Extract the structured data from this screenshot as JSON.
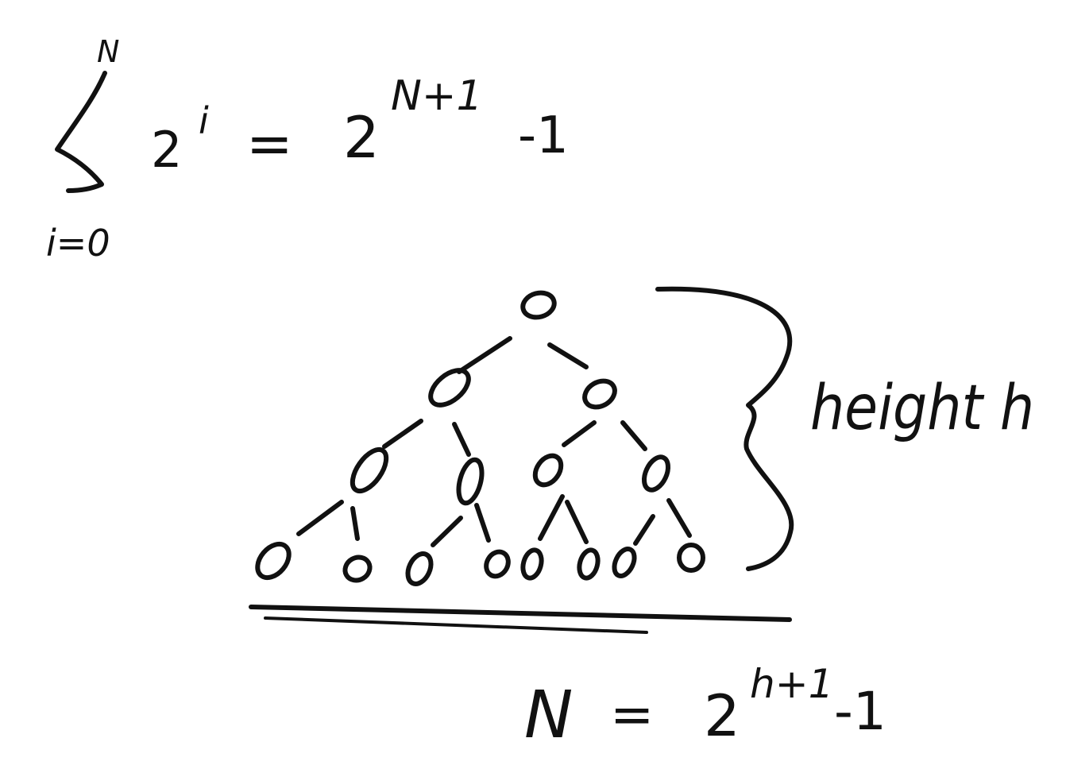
{
  "formula_sum": {
    "upper_limit": "N",
    "lower_limit": "i=0",
    "term_base": "2",
    "term_exponent": "i",
    "equals": "=",
    "rhs_base": "2",
    "rhs_exponent": "N+1",
    "rhs_tail": "-1"
  },
  "height_label": "height h",
  "formula_nodes": {
    "lhs": "N",
    "equals": "=",
    "base": "2",
    "exponent": "h+1",
    "tail": "-1"
  },
  "tree": {
    "levels": 4,
    "nodes_per_level": [
      1,
      2,
      4,
      8
    ]
  },
  "colors": {
    "ink": "#111111",
    "background": "#ffffff"
  }
}
